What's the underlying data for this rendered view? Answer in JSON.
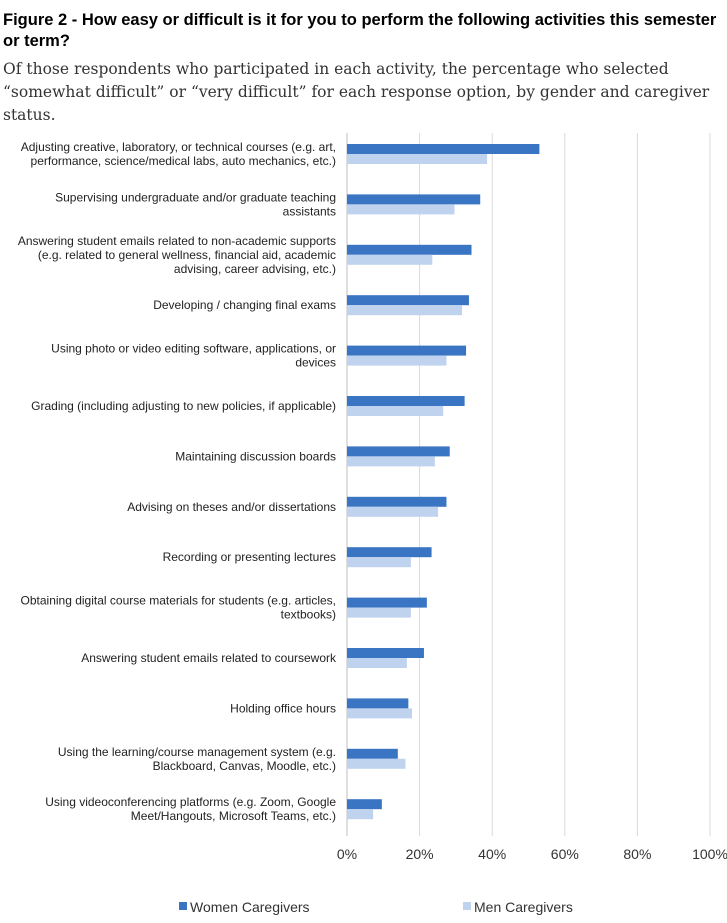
{
  "title": "Figure 2 - How easy or difficult is it for you to perform the following activities this semester or term?",
  "subtitle": "Of those respondents who participated in each activity, the percentage who selected “somewhat difficult” or “very difficult” for each response option, by gender and caregiver status.",
  "colors": {
    "women": "#3a75c4",
    "men": "#c0d3ee",
    "grid": "#d9d9d9",
    "axis": "#bfbfbf"
  },
  "chart_data": {
    "type": "bar",
    "orientation": "horizontal",
    "xlim": [
      0,
      100
    ],
    "ticks": [
      "0%",
      "20%",
      "40%",
      "60%",
      "80%",
      "100%"
    ],
    "tick_values": [
      0,
      20,
      40,
      60,
      80,
      100
    ],
    "grid": true,
    "legend": "bottom",
    "categories": [
      {
        "lines": [
          "Adjusting creative, laboratory, or technical courses (e.g. art,",
          "performance, science/medical labs, auto mechanics, etc.)"
        ]
      },
      {
        "lines": [
          "Supervising undergraduate and/or graduate teaching",
          "assistants"
        ]
      },
      {
        "lines": [
          "Answering student emails related to non-academic supports",
          "(e.g. related to general wellness, financial aid, academic",
          "advising, career advising, etc.)"
        ]
      },
      {
        "lines": [
          "Developing / changing final exams"
        ]
      },
      {
        "lines": [
          "Using photo or video editing software, applications, or",
          "devices"
        ]
      },
      {
        "lines": [
          "Grading (including adjusting to new policies, if applicable)"
        ]
      },
      {
        "lines": [
          "Maintaining discussion boards"
        ]
      },
      {
        "lines": [
          "Advising on theses and/or dissertations"
        ]
      },
      {
        "lines": [
          "Recording or presenting lectures"
        ]
      },
      {
        "lines": [
          "Obtaining digital course materials for students (e.g. articles,",
          "textbooks)"
        ]
      },
      {
        "lines": [
          "Answering student emails related to coursework"
        ]
      },
      {
        "lines": [
          "Holding office hours"
        ]
      },
      {
        "lines": [
          "Using the learning/course management system (e.g.",
          "Blackboard, Canvas, Moodle, etc.)"
        ]
      },
      {
        "lines": [
          "Using videoconferencing platforms (e.g. Zoom, Google",
          "Meet/Hangouts, Microsoft Teams, etc.)"
        ]
      }
    ],
    "series": [
      {
        "name": "Women Caregivers",
        "values": [
          53,
          36.7,
          34.3,
          33.6,
          32.8,
          32.4,
          28.3,
          27.4,
          23.3,
          22,
          21.2,
          16.9,
          14,
          9.6
        ]
      },
      {
        "name": "Men Caregivers",
        "values": [
          38.6,
          29.6,
          23.5,
          31.7,
          27.4,
          26.5,
          24.2,
          25.1,
          17.6,
          17.6,
          16.5,
          17.9,
          16.1,
          7.2
        ]
      }
    ]
  }
}
